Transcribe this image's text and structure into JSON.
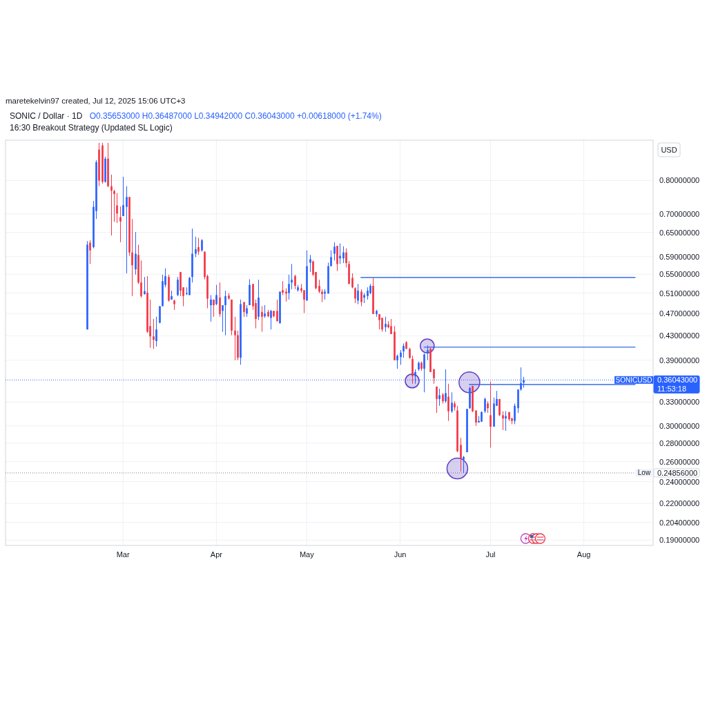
{
  "chart_data": {
    "type": "candlestick",
    "title": "SONIC / Dollar · 1D",
    "subtitle": "16:30 Breakout Strategy (Updated SL Logic)",
    "ylabel": "USD",
    "annotations": [
      "maretekelvin97 created, Jul 12, 2025 15:06 UTC+3",
      "O0.35653000 H0.36487000 L0.34942000 C0.36043000 +0.00618000 (+1.74%)",
      "0.36043000",
      "11:53:18",
      "0.24856000"
    ],
    "x": [
      "2025-02-17",
      "2025-02-18",
      "2025-02-19",
      "2025-02-20",
      "2025-02-21",
      "2025-02-22",
      "2025-02-23",
      "2025-02-24",
      "2025-02-25",
      "2025-02-26",
      "2025-02-27",
      "2025-02-28",
      "2025-03-01",
      "2025-03-02",
      "2025-03-03",
      "2025-03-04",
      "2025-03-05",
      "2025-03-06",
      "2025-03-07",
      "2025-03-08",
      "2025-03-09",
      "2025-03-10",
      "2025-03-11",
      "2025-03-12",
      "2025-03-13",
      "2025-03-14",
      "2025-03-15",
      "2025-03-16",
      "2025-03-17",
      "2025-03-18",
      "2025-03-19",
      "2025-03-20",
      "2025-03-21",
      "2025-03-22",
      "2025-03-23",
      "2025-03-24",
      "2025-03-25",
      "2025-03-26",
      "2025-03-27",
      "2025-03-28",
      "2025-03-29",
      "2025-03-30",
      "2025-03-31",
      "2025-04-01",
      "2025-04-02",
      "2025-04-03",
      "2025-04-04",
      "2025-04-05",
      "2025-04-06",
      "2025-04-07",
      "2025-04-08",
      "2025-04-09",
      "2025-04-10",
      "2025-04-11",
      "2025-04-12",
      "2025-04-13",
      "2025-04-14",
      "2025-04-15",
      "2025-04-16",
      "2025-04-17",
      "2025-04-18",
      "2025-04-19",
      "2025-04-20",
      "2025-04-21",
      "2025-04-22",
      "2025-04-23",
      "2025-04-24",
      "2025-04-25",
      "2025-04-26",
      "2025-04-27",
      "2025-04-28",
      "2025-04-29",
      "2025-04-30",
      "2025-05-01",
      "2025-05-02",
      "2025-05-03",
      "2025-05-04",
      "2025-05-05",
      "2025-05-06",
      "2025-05-07",
      "2025-05-08",
      "2025-05-09",
      "2025-05-10",
      "2025-05-11",
      "2025-05-12",
      "2025-05-13",
      "2025-05-14",
      "2025-05-15",
      "2025-05-16",
      "2025-05-17",
      "2025-05-18",
      "2025-05-19",
      "2025-05-20",
      "2025-05-21",
      "2025-05-22",
      "2025-05-23",
      "2025-05-24",
      "2025-05-25",
      "2025-05-26",
      "2025-05-27",
      "2025-05-28",
      "2025-05-29",
      "2025-05-30",
      "2025-05-31",
      "2025-06-01",
      "2025-06-02",
      "2025-06-03",
      "2025-06-04",
      "2025-06-05",
      "2025-06-06",
      "2025-06-07",
      "2025-06-08",
      "2025-06-09",
      "2025-06-10",
      "2025-06-11",
      "2025-06-12",
      "2025-06-13",
      "2025-06-14",
      "2025-06-15",
      "2025-06-16",
      "2025-06-17",
      "2025-06-18",
      "2025-06-19",
      "2025-06-20",
      "2025-06-21",
      "2025-06-22",
      "2025-06-23",
      "2025-06-24",
      "2025-06-25",
      "2025-06-26",
      "2025-06-27",
      "2025-06-28",
      "2025-06-29",
      "2025-06-30",
      "2025-07-01",
      "2025-07-02",
      "2025-07-03",
      "2025-07-04",
      "2025-07-05",
      "2025-07-06",
      "2025-07-07",
      "2025-07-08",
      "2025-07-09",
      "2025-07-10",
      "2025-07-11",
      "2025-07-12"
    ],
    "ohlc": [
      [
        0.441,
        0.628,
        0.441,
        0.619
      ],
      [
        0.624,
        0.63,
        0.573,
        0.605
      ],
      [
        0.613,
        0.737,
        0.61,
        0.72
      ],
      [
        0.708,
        0.868,
        0.686,
        0.861
      ],
      [
        0.905,
        0.93,
        0.782,
        0.8
      ],
      [
        0.92,
        0.93,
        0.79,
        0.796
      ],
      [
        0.796,
        0.88,
        0.793,
        0.873
      ],
      [
        0.873,
        0.93,
        0.779,
        0.782
      ],
      [
        0.782,
        0.819,
        0.642,
        0.768
      ],
      [
        0.767,
        0.771,
        0.678,
        0.758
      ],
      [
        0.724,
        0.761,
        0.675,
        0.701
      ],
      [
        0.691,
        0.721,
        0.625,
        0.679
      ],
      [
        0.694,
        0.812,
        0.694,
        0.725
      ],
      [
        0.72,
        0.782,
        0.552,
        0.749
      ],
      [
        0.749,
        0.749,
        0.592,
        0.6
      ],
      [
        0.6,
        0.686,
        0.504,
        0.57
      ],
      [
        0.561,
        0.651,
        0.549,
        0.597
      ],
      [
        0.594,
        0.619,
        0.529,
        0.532
      ],
      [
        0.532,
        0.581,
        0.501,
        0.504
      ],
      [
        0.508,
        0.544,
        0.507,
        0.514
      ],
      [
        0.511,
        0.546,
        0.435,
        0.437
      ],
      [
        0.447,
        0.497,
        0.41,
        0.429
      ],
      [
        0.429,
        0.46,
        0.408,
        0.423
      ],
      [
        0.421,
        0.464,
        0.412,
        0.441
      ],
      [
        0.453,
        0.484,
        0.452,
        0.484
      ],
      [
        0.484,
        0.549,
        0.484,
        0.535
      ],
      [
        0.527,
        0.563,
        0.522,
        0.546
      ],
      [
        0.544,
        0.549,
        0.493,
        0.495
      ],
      [
        0.497,
        0.515,
        0.497,
        0.504
      ],
      [
        0.495,
        0.497,
        0.477,
        0.488
      ],
      [
        0.506,
        0.544,
        0.504,
        0.538
      ],
      [
        0.555,
        0.555,
        0.504,
        0.515
      ],
      [
        0.522,
        0.522,
        0.484,
        0.504
      ],
      [
        0.508,
        0.522,
        0.506,
        0.51
      ],
      [
        0.506,
        0.544,
        0.506,
        0.542
      ],
      [
        0.544,
        0.66,
        0.532,
        0.597
      ],
      [
        0.597,
        0.639,
        0.589,
        0.608
      ],
      [
        0.613,
        0.636,
        0.594,
        0.602
      ],
      [
        0.605,
        0.633,
        0.602,
        0.63
      ],
      [
        0.602,
        0.602,
        0.539,
        0.544
      ],
      [
        0.546,
        0.549,
        0.48,
        0.499
      ],
      [
        0.486,
        0.506,
        0.455,
        0.497
      ],
      [
        0.497,
        0.497,
        0.464,
        0.486
      ],
      [
        0.488,
        0.527,
        0.486,
        0.506
      ],
      [
        0.501,
        0.532,
        0.464,
        0.469
      ],
      [
        0.475,
        0.486,
        0.437,
        0.486
      ],
      [
        0.486,
        0.515,
        0.431,
        0.504
      ],
      [
        0.505,
        0.51,
        0.497,
        0.499
      ],
      [
        0.497,
        0.497,
        0.431,
        0.439
      ],
      [
        0.439,
        0.464,
        0.39,
        0.431
      ],
      [
        0.431,
        0.439,
        0.39,
        0.394
      ],
      [
        0.394,
        0.497,
        0.383,
        0.488
      ],
      [
        0.492,
        0.492,
        0.464,
        0.473
      ],
      [
        0.47,
        0.486,
        0.464,
        0.48
      ],
      [
        0.486,
        0.539,
        0.486,
        0.527
      ],
      [
        0.529,
        0.529,
        0.477,
        0.484
      ],
      [
        0.49,
        0.497,
        0.443,
        0.46
      ],
      [
        0.464,
        0.538,
        0.458,
        0.501
      ],
      [
        0.473,
        0.484,
        0.437,
        0.464
      ],
      [
        0.465,
        0.486,
        0.462,
        0.47
      ],
      [
        0.473,
        0.477,
        0.463,
        0.465
      ],
      [
        0.462,
        0.477,
        0.441,
        0.475
      ],
      [
        0.475,
        0.475,
        0.463,
        0.465
      ],
      [
        0.475,
        0.497,
        0.455,
        0.456
      ],
      [
        0.452,
        0.513,
        0.452,
        0.513
      ],
      [
        0.516,
        0.535,
        0.506,
        0.511
      ],
      [
        0.513,
        0.52,
        0.493,
        0.509
      ],
      [
        0.51,
        0.549,
        0.497,
        0.529
      ],
      [
        0.532,
        0.573,
        0.518,
        0.538
      ],
      [
        0.546,
        0.549,
        0.518,
        0.525
      ],
      [
        0.516,
        0.527,
        0.513,
        0.522
      ],
      [
        0.52,
        0.529,
        0.511,
        0.515
      ],
      [
        0.516,
        0.516,
        0.471,
        0.497
      ],
      [
        0.495,
        0.605,
        0.495,
        0.568
      ],
      [
        0.576,
        0.594,
        0.555,
        0.584
      ],
      [
        0.579,
        0.581,
        0.546,
        0.549
      ],
      [
        0.555,
        0.555,
        0.518,
        0.52
      ],
      [
        0.525,
        0.538,
        0.51,
        0.513
      ],
      [
        0.513,
        0.518,
        0.492,
        0.508
      ],
      [
        0.509,
        0.518,
        0.497,
        0.513
      ],
      [
        0.509,
        0.576,
        0.509,
        0.568
      ],
      [
        0.568,
        0.605,
        0.568,
        0.589
      ],
      [
        0.597,
        0.625,
        0.581,
        0.614
      ],
      [
        0.616,
        0.616,
        0.557,
        0.573
      ],
      [
        0.586,
        0.622,
        0.573,
        0.592
      ],
      [
        0.586,
        0.615,
        0.575,
        0.6
      ],
      [
        0.6,
        0.61,
        0.565,
        0.575
      ],
      [
        0.573,
        0.58,
        0.529,
        0.529
      ],
      [
        0.542,
        0.552,
        0.52,
        0.522
      ],
      [
        0.52,
        0.522,
        0.49,
        0.499
      ],
      [
        0.495,
        0.529,
        0.488,
        0.515
      ],
      [
        0.513,
        0.518,
        0.484,
        0.492
      ],
      [
        0.501,
        0.51,
        0.49,
        0.506
      ],
      [
        0.504,
        0.522,
        0.497,
        0.515
      ],
      [
        0.51,
        0.529,
        0.508,
        0.525
      ],
      [
        0.525,
        0.542,
        0.469,
        0.469
      ],
      [
        0.469,
        0.477,
        0.464,
        0.475
      ],
      [
        0.469,
        0.469,
        0.441,
        0.458
      ],
      [
        0.462,
        0.462,
        0.437,
        0.441
      ],
      [
        0.445,
        0.464,
        0.437,
        0.451
      ],
      [
        0.45,
        0.456,
        0.443,
        0.445
      ],
      [
        0.447,
        0.46,
        0.433,
        0.433
      ],
      [
        0.437,
        0.447,
        0.39,
        0.39
      ],
      [
        0.39,
        0.399,
        0.377,
        0.397
      ],
      [
        0.395,
        0.406,
        0.383,
        0.402
      ],
      [
        0.404,
        0.417,
        0.394,
        0.413
      ],
      [
        0.419,
        0.421,
        0.408,
        0.408
      ],
      [
        0.408,
        0.41,
        0.392,
        0.394
      ],
      [
        0.392,
        0.397,
        0.355,
        0.366
      ],
      [
        0.366,
        0.376,
        0.355,
        0.372
      ],
      [
        0.376,
        0.388,
        0.374,
        0.386
      ],
      [
        0.386,
        0.388,
        0.374,
        0.377
      ],
      [
        0.377,
        0.401,
        0.343,
        0.399
      ],
      [
        0.401,
        0.414,
        0.39,
        0.406
      ],
      [
        0.408,
        0.41,
        0.372,
        0.372
      ],
      [
        0.376,
        0.377,
        0.355,
        0.363
      ],
      [
        0.351,
        0.351,
        0.316,
        0.334
      ],
      [
        0.334,
        0.348,
        0.325,
        0.339
      ],
      [
        0.34,
        0.342,
        0.328,
        0.331
      ],
      [
        0.331,
        0.376,
        0.329,
        0.342
      ],
      [
        0.337,
        0.355,
        0.306,
        0.318
      ],
      [
        0.318,
        0.343,
        0.316,
        0.329
      ],
      [
        0.328,
        0.331,
        0.319,
        0.323
      ],
      [
        0.319,
        0.325,
        0.27,
        0.271
      ],
      [
        0.278,
        0.286,
        0.25,
        0.263
      ],
      [
        0.262,
        0.266,
        0.24856,
        0.265
      ],
      [
        0.27,
        0.321,
        0.27,
        0.321
      ],
      [
        0.322,
        0.351,
        0.321,
        0.349
      ],
      [
        0.352,
        0.352,
        0.317,
        0.318
      ],
      [
        0.319,
        0.319,
        0.3,
        0.304
      ],
      [
        0.304,
        0.312,
        0.304,
        0.306
      ],
      [
        0.305,
        0.318,
        0.305,
        0.317
      ],
      [
        0.318,
        0.336,
        0.316,
        0.334
      ],
      [
        0.328,
        0.331,
        0.316,
        0.322
      ],
      [
        0.313,
        0.358,
        0.275,
        0.299
      ],
      [
        0.299,
        0.336,
        0.299,
        0.328
      ],
      [
        0.325,
        0.345,
        0.325,
        0.334
      ],
      [
        0.334,
        0.334,
        0.312,
        0.313
      ],
      [
        0.313,
        0.318,
        0.295,
        0.309
      ],
      [
        0.309,
        0.318,
        0.294,
        0.312
      ],
      [
        0.317,
        0.317,
        0.306,
        0.308
      ],
      [
        0.309,
        0.31,
        0.302,
        0.306
      ],
      [
        0.306,
        0.328,
        0.302,
        0.325
      ],
      [
        0.322,
        0.347,
        0.316,
        0.347
      ],
      [
        0.347,
        0.379,
        0.345,
        0.356
      ],
      [
        0.35653,
        0.36487,
        0.34942,
        0.36043
      ]
    ],
    "colors": [
      "#2962ff",
      "#f23645",
      "#2962ff",
      "#2962ff",
      "#f23645",
      "#f23645",
      "#2962ff",
      "#f23645",
      "#f23645",
      "#f23645",
      "#f23645",
      "#f23645",
      "#2962ff",
      "#2962ff",
      "#f23645",
      "#f23645",
      "#2962ff",
      "#f23645",
      "#f23645",
      "#2962ff",
      "#f23645",
      "#f23645",
      "#f23645",
      "#2962ff",
      "#2962ff",
      "#2962ff",
      "#2962ff",
      "#f23645",
      "#2962ff",
      "#f23645",
      "#2962ff",
      "#f23645",
      "#f23645",
      "#2962ff",
      "#2962ff",
      "#2962ff",
      "#2962ff",
      "#f23645",
      "#2962ff",
      "#f23645",
      "#f23645",
      "#2962ff",
      "#f23645",
      "#2962ff",
      "#f23645",
      "#2962ff",
      "#2962ff",
      "#f23645",
      "#f23645",
      "#f23645",
      "#f23645",
      "#2962ff",
      "#f23645",
      "#2962ff",
      "#2962ff",
      "#f23645",
      "#f23645",
      "#2962ff",
      "#f23645",
      "#2962ff",
      "#f23645",
      "#2962ff",
      "#f23645",
      "#f23645",
      "#2962ff",
      "#f23645",
      "#f23645",
      "#2962ff",
      "#2962ff",
      "#f23645",
      "#2962ff",
      "#f23645",
      "#f23645",
      "#2962ff",
      "#2962ff",
      "#f23645",
      "#f23645",
      "#f23645",
      "#f23645",
      "#2962ff",
      "#2962ff",
      "#2962ff",
      "#2962ff",
      "#f23645",
      "#2962ff",
      "#2962ff",
      "#f23645",
      "#f23645",
      "#f23645",
      "#f23645",
      "#2962ff",
      "#f23645",
      "#2962ff",
      "#2962ff",
      "#2962ff",
      "#f23645",
      "#2962ff",
      "#f23645",
      "#f23645",
      "#2962ff",
      "#f23645",
      "#f23645",
      "#f23645",
      "#2962ff",
      "#2962ff",
      "#2962ff",
      "#f23645",
      "#f23645",
      "#f23645",
      "#2962ff",
      "#2962ff",
      "#f23645",
      "#2962ff",
      "#2962ff",
      "#f23645",
      "#f23645",
      "#f23645",
      "#2962ff",
      "#f23645",
      "#2962ff",
      "#f23645",
      "#2962ff",
      "#f23645",
      "#f23645",
      "#f23645",
      "#2962ff",
      "#2962ff",
      "#2962ff",
      "#f23645",
      "#f23645",
      "#2962ff",
      "#2962ff",
      "#2962ff",
      "#f23645",
      "#f23645",
      "#2962ff",
      "#2962ff",
      "#f23645",
      "#f23645",
      "#2962ff",
      "#f23645",
      "#f23645",
      "#2962ff",
      "#2962ff",
      "#2962ff",
      "#2962ff"
    ],
    "series": [
      {
        "type": "line",
        "x": [
          "2025-05-19",
          "2025-08-18"
        ],
        "values": [
          0.543,
          0.543
        ],
        "color": "#5283eb"
      },
      {
        "type": "line",
        "x": [
          "2025-06-09",
          "2025-08-18"
        ],
        "values": [
          0.411,
          0.411
        ],
        "color": "#5283eb"
      },
      {
        "type": "line",
        "x": [
          "2025-06-24",
          "2025-08-18"
        ],
        "values": [
          0.354,
          0.354
        ],
        "color": "#5283eb"
      },
      {
        "type": "bubble",
        "x": [
          "2025-06-05",
          "2025-06-10",
          "2025-06-20",
          "2025-06-24"
        ],
        "values": [
          0.359,
          0.413,
          0.253,
          0.357
        ],
        "sizes": [
          0.45,
          0.45,
          1,
          1
        ],
        "color": "#5e3fc2"
      }
    ],
    "ref_lines": [
      {
        "axis": "y",
        "value": 0.36043,
        "label": "SONICUSD",
        "color": "#2962ff",
        "line_style": "dotted"
      },
      {
        "axis": "y",
        "value": 0.24856,
        "label": "Low",
        "line_style": "dotted"
      }
    ],
    "xlim": [
      "2025-01-21",
      "2025-08-24"
    ],
    "xticks": [
      {
        "value": "2025-03-01",
        "label": "Mar"
      },
      {
        "value": "2025-04-01",
        "label": "Apr"
      },
      {
        "value": "2025-05-01",
        "label": "May"
      },
      {
        "value": "2025-06-01",
        "label": "Jun"
      },
      {
        "value": "2025-07-01",
        "label": "Jul"
      },
      {
        "value": "2025-08-01",
        "label": "Aug"
      }
    ],
    "ylim": [
      0.186,
      0.94
    ],
    "yticks": [
      {
        "value": 0.8,
        "label": "0.80000000"
      },
      {
        "value": 0.7,
        "label": "0.70000000"
      },
      {
        "value": 0.65,
        "label": "0.65000000"
      },
      {
        "value": 0.59,
        "label": "0.59000000"
      },
      {
        "value": 0.55,
        "label": "0.55000000"
      },
      {
        "value": 0.51,
        "label": "0.51000000"
      },
      {
        "value": 0.47,
        "label": "0.47000000"
      },
      {
        "value": 0.43,
        "label": "0.43000000"
      },
      {
        "value": 0.39,
        "label": "0.39000000"
      },
      {
        "value": 0.33,
        "label": "0.33000000"
      },
      {
        "value": 0.3,
        "label": "0.30000000"
      },
      {
        "value": 0.28,
        "label": "0.28000000"
      },
      {
        "value": 0.26,
        "label": "0.26000000"
      },
      {
        "value": 0.24,
        "label": "0.24000000"
      },
      {
        "value": 0.22,
        "label": "0.22000000"
      },
      {
        "value": 0.204,
        "label": "0.20400000"
      },
      {
        "value": 0.19,
        "label": "0.19000000"
      }
    ],
    "log": true,
    "grid": true
  }
}
